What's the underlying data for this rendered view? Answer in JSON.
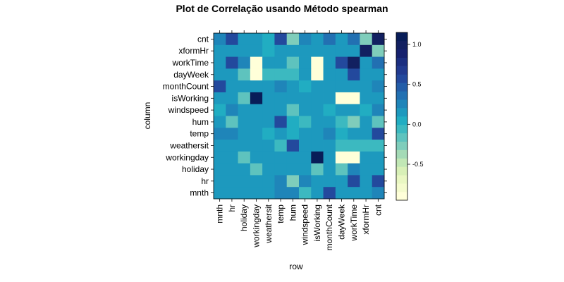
{
  "chart_data": {
    "type": "heatmap",
    "title": "Plot de Correlação usando Método spearman",
    "xlabel": "row",
    "ylabel": "column",
    "x_categories": [
      "mnth",
      "hr",
      "holiday",
      "workingday",
      "weathersit",
      "temp",
      "hum",
      "windspeed",
      "isWorking",
      "monthCount",
      "dayWeek",
      "workTime",
      "xformHr",
      "cnt"
    ],
    "y_categories_top_to_bottom": [
      "cnt",
      "xformHr",
      "workTime",
      "dayWeek",
      "monthCount",
      "isWorking",
      "windspeed",
      "hum",
      "temp",
      "weathersit",
      "workingday",
      "holiday",
      "hr",
      "mnth"
    ],
    "values": [
      [
        0.3,
        0.6,
        0.1,
        0.1,
        0.0,
        0.6,
        -0.3,
        0.3,
        0.1,
        0.4,
        0.2,
        0.4,
        -0.3,
        1.0
      ],
      [
        0.1,
        0.1,
        0.1,
        0.1,
        0.0,
        0.1,
        0.1,
        0.1,
        0.1,
        0.1,
        0.1,
        0.1,
        1.0,
        -0.3
      ],
      [
        0.1,
        0.6,
        0.3,
        -0.9,
        0.1,
        0.1,
        -0.2,
        0.1,
        -0.9,
        0.1,
        0.6,
        1.0,
        0.1,
        0.4
      ],
      [
        0.1,
        0.1,
        -0.2,
        -0.9,
        -0.1,
        -0.1,
        -0.1,
        0.1,
        -0.9,
        0.1,
        0.1,
        0.6,
        0.1,
        0.1
      ],
      [
        0.6,
        0.1,
        0.1,
        0.1,
        0.1,
        0.3,
        0.1,
        0.0,
        0.1,
        0.1,
        0.1,
        0.1,
        0.1,
        0.3
      ],
      [
        0.1,
        0.1,
        -0.2,
        1.15,
        0.1,
        0.1,
        0.1,
        0.1,
        0.1,
        0.1,
        -0.9,
        -0.9,
        0.1,
        0.1
      ],
      [
        0.0,
        0.3,
        0.1,
        0.1,
        0.1,
        0.1,
        -0.2,
        0.1,
        0.1,
        0.0,
        0.1,
        0.1,
        0.0,
        0.3
      ],
      [
        0.1,
        -0.2,
        0.1,
        0.1,
        0.1,
        0.6,
        0.0,
        -0.1,
        0.1,
        0.1,
        -0.1,
        -0.3,
        0.1,
        -0.2
      ],
      [
        0.3,
        0.3,
        0.1,
        0.1,
        0.0,
        0.1,
        0.0,
        0.1,
        0.1,
        0.3,
        0.0,
        0.1,
        0.1,
        0.6
      ],
      [
        0.1,
        0.1,
        0.1,
        0.1,
        0.1,
        -0.1,
        0.6,
        0.1,
        0.1,
        0.1,
        -0.1,
        -0.1,
        -0.1,
        -0.1
      ],
      [
        0.1,
        0.1,
        -0.2,
        0.1,
        0.1,
        0.1,
        0.1,
        0.1,
        1.15,
        0.1,
        -0.9,
        -0.9,
        0.1,
        0.1
      ],
      [
        0.1,
        0.1,
        0.1,
        -0.2,
        0.1,
        0.1,
        0.1,
        0.1,
        -0.2,
        0.1,
        -0.2,
        0.3,
        0.1,
        0.1
      ],
      [
        0.1,
        0.1,
        0.1,
        0.1,
        0.1,
        0.3,
        -0.3,
        0.3,
        0.1,
        0.1,
        0.1,
        0.6,
        0.1,
        0.6
      ],
      [
        0.1,
        0.1,
        0.1,
        0.1,
        0.1,
        0.3,
        0.3,
        -0.1,
        0.1,
        0.6,
        0.1,
        0.1,
        0.1,
        0.3
      ]
    ],
    "colorbar": {
      "ticks": [
        1.0,
        0.5,
        0.0,
        -0.5
      ],
      "tick_labels": [
        "1.0",
        "0.5",
        "0.0",
        "-0.5"
      ],
      "range": [
        -0.95,
        1.15
      ],
      "bins": 20,
      "colors_low_to_high": [
        "#ffffd9",
        "#f4fbcd",
        "#e9f7c2",
        "#d8f0b7",
        "#c1e7b5",
        "#a4dab6",
        "#7fcdbb",
        "#5ec3be",
        "#3cb9c0",
        "#21adc2",
        "#1d99be",
        "#1f85b9",
        "#2270b2",
        "#235da8",
        "#23499d",
        "#213a8f",
        "#1b2e80",
        "#16216e",
        "#122060",
        "#081d58"
      ],
      "range_visible_extra": "upper bin darkest"
    },
    "grid": false,
    "legend_placement": "right"
  }
}
